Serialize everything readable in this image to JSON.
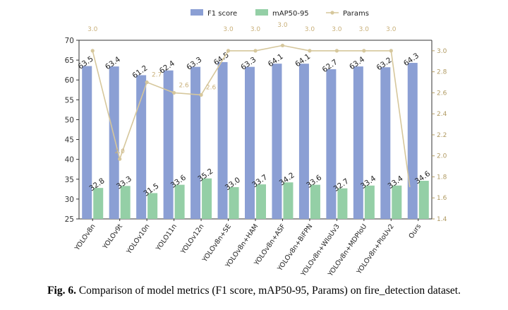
{
  "figure": {
    "caption_label": "Fig. 6.",
    "caption_text": "Comparison of model metrics (F1 score, mAP50-95, Params) on fire_detection dataset."
  },
  "chart_data": {
    "type": "bar",
    "categories": [
      "YOLOv8n",
      "YOLOv9t",
      "YOLOv10n",
      "YOLO11n",
      "YOLOv12n",
      "YOLOv8n+SE",
      "YOLOv8n+HAM",
      "YOLOv8n+ASF",
      "YOLOv8n+BiFPN",
      "YOLOv8n+WIoUv3",
      "YOLOv8n+MDPIoU",
      "YOLOv8n+PIoUv2",
      "Ours"
    ],
    "series": [
      {
        "name": "F1 score",
        "kind": "bar",
        "axis": "left",
        "color": "#8b9fd4",
        "values": [
          63.5,
          63.4,
          61.2,
          62.4,
          63.3,
          64.5,
          63.3,
          64.1,
          64.1,
          62.7,
          63.4,
          63.2,
          64.3
        ],
        "labels": [
          "63.5",
          "63.4",
          "61.2",
          "62.4",
          "63.3",
          "64.5",
          "63.3",
          "64.1",
          "64.1",
          "62.7",
          "63.4",
          "63.2",
          "64.3"
        ]
      },
      {
        "name": "mAP50-95",
        "kind": "bar",
        "axis": "left",
        "color": "#94cfa6",
        "values": [
          32.8,
          33.3,
          31.5,
          33.6,
          35.2,
          33.0,
          33.7,
          34.2,
          33.6,
          32.7,
          33.4,
          33.4,
          34.6
        ],
        "labels": [
          "32.8",
          "33.3",
          "31.5",
          "33.6",
          "35.2",
          "33.0",
          "33.7",
          "34.2",
          "33.6",
          "32.7",
          "33.4",
          "33.4",
          "34.6"
        ]
      },
      {
        "name": "Params",
        "kind": "line",
        "axis": "right",
        "color": "#d6c79c",
        "values": [
          3.0,
          1.97,
          2.7,
          2.6,
          2.58,
          3.0,
          3.0,
          3.05,
          3.0,
          3.0,
          3.0,
          3.0,
          null
        ],
        "labels": [
          "3.0",
          "2.0",
          "2.7",
          "2.6",
          "2.6",
          "3.0",
          "3.0",
          "3.0",
          "3.0",
          "3.0",
          "3.0",
          "3.0",
          ""
        ]
      }
    ],
    "y_left": {
      "range": [
        25,
        70
      ],
      "ticks": [
        "25",
        "30",
        "35",
        "40",
        "45",
        "50",
        "55",
        "60",
        "65",
        "70"
      ]
    },
    "y_right": {
      "range": [
        1.4,
        3.1
      ],
      "ticks": [
        "1.4",
        "1.6",
        "1.8",
        "2.0",
        "2.2",
        "2.4",
        "2.6",
        "2.8",
        "3.0"
      ]
    },
    "legend": {
      "position": "top-center",
      "entries": [
        "F1 score",
        "mAP50-95",
        "Params"
      ]
    },
    "grid": false
  }
}
